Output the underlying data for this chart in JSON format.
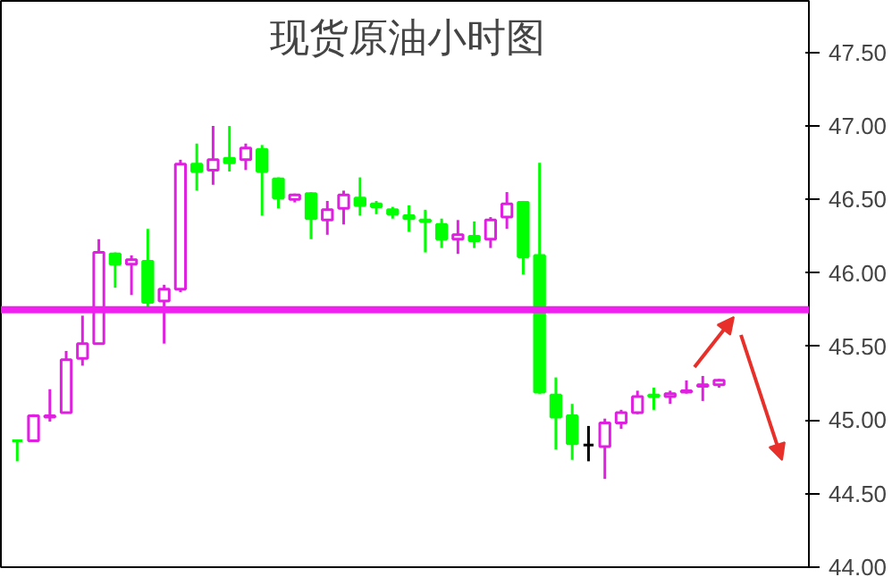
{
  "chart_data": {
    "type": "candlestick",
    "title": "现货原油小时图",
    "categories": [
      null,
      null,
      null,
      null,
      null,
      null,
      null,
      null,
      null,
      null,
      null,
      null,
      null,
      null,
      null,
      null,
      null,
      null,
      null,
      null,
      null,
      null,
      null,
      null,
      null,
      null,
      null,
      null,
      null,
      null,
      null,
      null,
      null,
      null,
      null,
      null,
      null,
      null,
      null,
      null,
      null,
      null,
      null,
      null
    ],
    "ohlc": [
      [
        44.86,
        44.86,
        44.72,
        44.86
      ],
      [
        44.86,
        45.04,
        44.86,
        45.03
      ],
      [
        45.02,
        45.21,
        44.99,
        45.03
      ],
      [
        45.05,
        45.47,
        45.05,
        45.41
      ],
      [
        45.42,
        45.71,
        45.37,
        45.52
      ],
      [
        45.52,
        46.23,
        45.52,
        46.14
      ],
      [
        46.13,
        46.14,
        45.9,
        46.06
      ],
      [
        46.06,
        46.12,
        45.85,
        46.09
      ],
      [
        46.08,
        46.3,
        45.77,
        45.8
      ],
      [
        45.81,
        45.92,
        45.52,
        45.89
      ],
      [
        45.89,
        46.77,
        45.87,
        46.74
      ],
      [
        46.74,
        46.88,
        46.56,
        46.69
      ],
      [
        46.7,
        47.0,
        46.6,
        46.77
      ],
      [
        46.78,
        47.0,
        46.69,
        46.75
      ],
      [
        46.77,
        46.88,
        46.7,
        46.85
      ],
      [
        46.84,
        46.87,
        46.39,
        46.69
      ],
      [
        46.64,
        46.65,
        46.44,
        46.51
      ],
      [
        46.5,
        46.54,
        46.48,
        46.53
      ],
      [
        46.54,
        46.55,
        46.23,
        46.37
      ],
      [
        46.36,
        46.49,
        46.26,
        46.43
      ],
      [
        46.44,
        46.56,
        46.33,
        46.53
      ],
      [
        46.51,
        46.65,
        46.39,
        46.46
      ],
      [
        46.47,
        46.49,
        46.4,
        46.45
      ],
      [
        46.43,
        46.45,
        46.37,
        46.4
      ],
      [
        46.39,
        46.46,
        46.28,
        46.37
      ],
      [
        46.36,
        46.43,
        46.14,
        46.35
      ],
      [
        46.33,
        46.37,
        46.17,
        46.23
      ],
      [
        46.23,
        46.36,
        46.13,
        46.26
      ],
      [
        46.25,
        46.35,
        46.17,
        46.22
      ],
      [
        46.23,
        46.38,
        46.17,
        46.36
      ],
      [
        46.38,
        46.55,
        46.3,
        46.47
      ],
      [
        46.48,
        46.49,
        45.99,
        46.11
      ],
      [
        46.12,
        46.75,
        45.18,
        45.19
      ],
      [
        45.17,
        45.29,
        44.8,
        45.02
      ],
      [
        45.03,
        45.11,
        44.73,
        44.84
      ],
      [
        44.83,
        44.96,
        44.72,
        44.83
      ],
      [
        44.82,
        45.01,
        44.6,
        44.98
      ],
      [
        44.98,
        45.07,
        44.94,
        45.05
      ],
      [
        45.05,
        45.2,
        45.04,
        45.16
      ],
      [
        45.17,
        45.22,
        45.07,
        45.16
      ],
      [
        45.16,
        45.2,
        45.11,
        45.18
      ],
      [
        45.19,
        45.27,
        45.18,
        45.2
      ],
      [
        45.23,
        45.3,
        45.13,
        45.24
      ],
      [
        45.24,
        45.28,
        45.22,
        45.27
      ]
    ],
    "colors": [
      "#00ff00",
      "#e020e0",
      "#e020e0",
      "#e020e0",
      "#e020e0",
      "#e020e0",
      "#00ff00",
      "#e020e0",
      "#00ff00",
      "#e020e0",
      "#e020e0",
      "#00ff00",
      "#e020e0",
      "#00ff00",
      "#e020e0",
      "#00ff00",
      "#00ff00",
      "#e020e0",
      "#00ff00",
      "#e020e0",
      "#e020e0",
      "#00ff00",
      "#00ff00",
      "#00ff00",
      "#00ff00",
      "#00ff00",
      "#00ff00",
      "#e020e0",
      "#00ff00",
      "#e020e0",
      "#e020e0",
      "#00ff00",
      "#00ff00",
      "#00ff00",
      "#00ff00",
      "#000000",
      "#e020e0",
      "#e020e0",
      "#e020e0",
      "#00ff00",
      "#e020e0",
      "#e020e0",
      "#e020e0",
      "#e020e0"
    ],
    "ylim": [
      44.0,
      47.85
    ],
    "yticks": [
      {
        "value": 44.0,
        "label": "44.00"
      },
      {
        "value": 44.5,
        "label": "44.50"
      },
      {
        "value": 45.0,
        "label": "45.00"
      },
      {
        "value": 45.5,
        "label": "45.50"
      },
      {
        "value": 46.0,
        "label": "46.00"
      },
      {
        "value": 46.5,
        "label": "46.50"
      },
      {
        "value": 47.0,
        "label": "47.00"
      },
      {
        "value": 47.5,
        "label": "47.50"
      }
    ],
    "ref_lines": [
      {
        "axis": "y",
        "value": 45.75,
        "color": "#f020f0"
      }
    ],
    "tick_labels": "y",
    "grid": false
  }
}
